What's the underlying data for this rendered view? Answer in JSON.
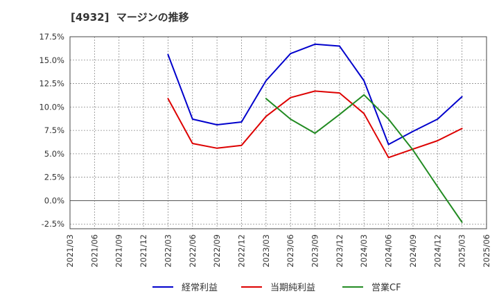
{
  "chart_data": {
    "type": "line",
    "title": "[4932]  マージンの推移",
    "xlabel": "",
    "ylabel": "",
    "ylim": [
      -3.0,
      17.5
    ],
    "yticks": [
      17.5,
      15.0,
      12.5,
      10.0,
      7.5,
      5.0,
      2.5,
      0.0,
      -2.5
    ],
    "ytick_labels": [
      "17.5%",
      "15.0%",
      "12.5%",
      "10.0%",
      "7.5%",
      "5.0%",
      "2.5%",
      "0.0%",
      "-2.5%"
    ],
    "categories": [
      "2021/03",
      "2021/06",
      "2021/09",
      "2021/12",
      "2022/03",
      "2022/06",
      "2022/09",
      "2022/12",
      "2023/03",
      "2023/06",
      "2023/09",
      "2023/12",
      "2024/03",
      "2024/06",
      "2024/09",
      "2024/12",
      "2025/03",
      "2025/06"
    ],
    "grid": true,
    "legend_position": "bottom",
    "series": [
      {
        "name": "経常利益",
        "color": "#0000cc",
        "values": [
          null,
          null,
          null,
          null,
          15.6,
          8.7,
          8.1,
          8.4,
          12.8,
          15.7,
          16.7,
          16.5,
          12.8,
          6.0,
          7.4,
          8.7,
          11.1,
          null
        ]
      },
      {
        "name": "当期純利益",
        "color": "#dd0000",
        "values": [
          null,
          null,
          null,
          null,
          10.9,
          6.1,
          5.6,
          5.9,
          9.0,
          11.0,
          11.7,
          11.5,
          9.3,
          4.6,
          5.5,
          6.4,
          7.7,
          null
        ]
      },
      {
        "name": "営業CF",
        "color": "#228B22",
        "values": [
          null,
          null,
          null,
          null,
          null,
          null,
          null,
          null,
          10.9,
          8.7,
          7.2,
          9.2,
          11.3,
          8.7,
          5.4,
          1.5,
          -2.3,
          null
        ]
      }
    ]
  }
}
